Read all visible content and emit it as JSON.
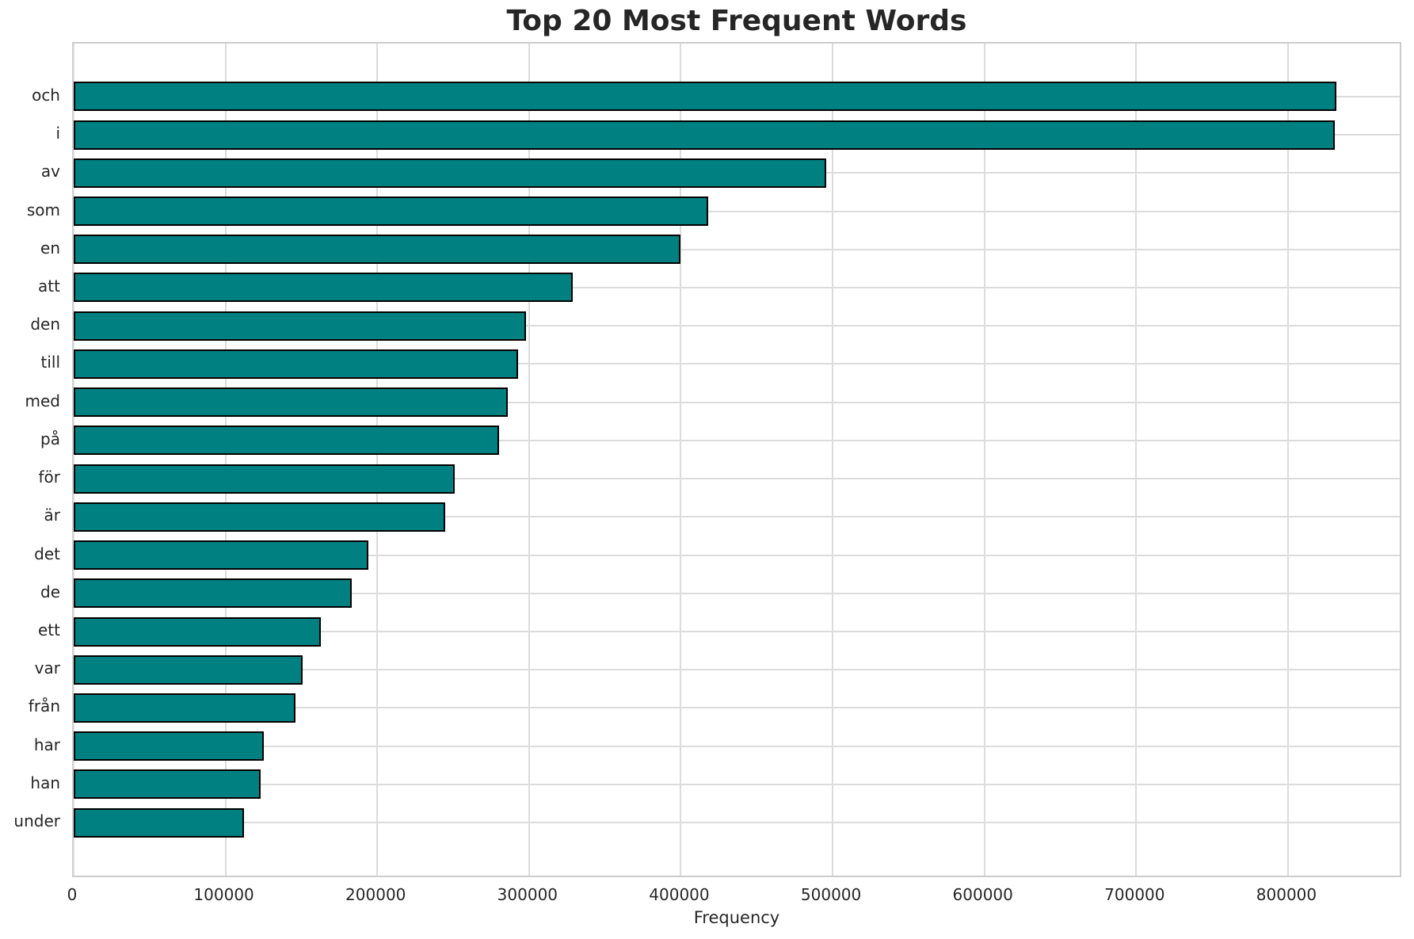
{
  "chart_data": {
    "type": "bar",
    "orientation": "horizontal",
    "title": "Top 20 Most Frequent Words",
    "xlabel": "Frequency",
    "ylabel": "",
    "categories": [
      "och",
      "i",
      "av",
      "som",
      "en",
      "att",
      "den",
      "till",
      "med",
      "på",
      "för",
      "är",
      "det",
      "de",
      "ett",
      "var",
      "från",
      "har",
      "han",
      "under"
    ],
    "values": [
      832000,
      831000,
      496000,
      418000,
      400000,
      329000,
      298000,
      293000,
      286000,
      280000,
      251000,
      245000,
      194000,
      183000,
      163000,
      151000,
      146000,
      125000,
      123000,
      112000
    ],
    "xlim": [
      0,
      873600
    ],
    "xticks": [
      0,
      100000,
      200000,
      300000,
      400000,
      500000,
      600000,
      700000,
      800000
    ],
    "grid": true,
    "legend": null,
    "bar_color": "#008080",
    "bar_edge_color": "#000000",
    "grid_color": "#dcdcdc",
    "spine_color": "#cccccc",
    "background_color": "#ffffff",
    "text_color": "#262626"
  }
}
